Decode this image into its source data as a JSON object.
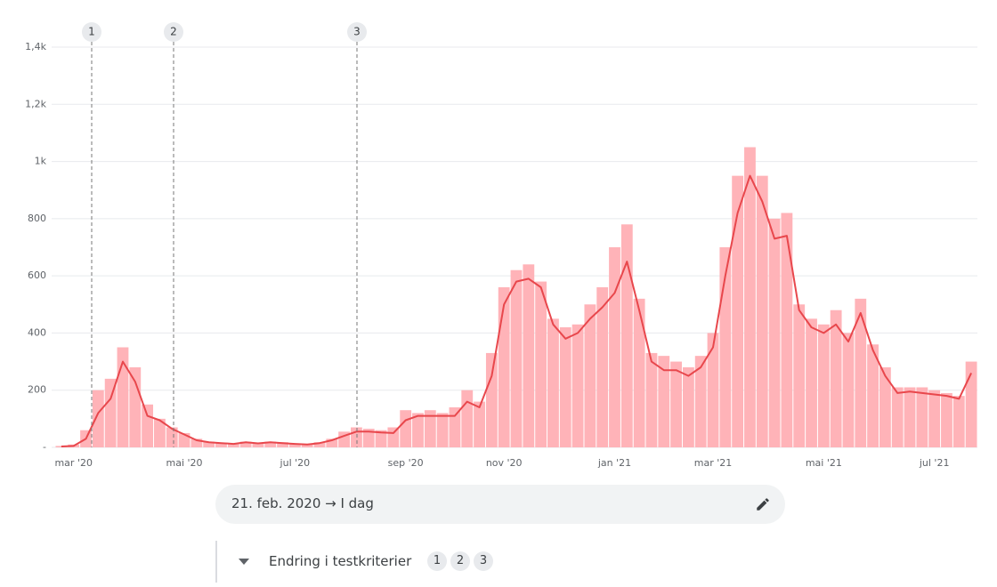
{
  "chart_data": {
    "type": "combo",
    "categories": [
      null,
      "mar '20",
      null,
      null,
      null,
      null,
      null,
      null,
      null,
      null,
      "mai '20",
      null,
      null,
      null,
      null,
      null,
      null,
      null,
      null,
      "jul '20",
      null,
      null,
      null,
      null,
      null,
      null,
      null,
      null,
      "sep '20",
      null,
      null,
      null,
      null,
      null,
      null,
      null,
      "nov '20",
      null,
      null,
      null,
      null,
      null,
      null,
      null,
      null,
      "jan '21",
      null,
      null,
      null,
      null,
      null,
      null,
      null,
      "mar '21",
      null,
      null,
      null,
      null,
      null,
      null,
      null,
      null,
      "mai '21",
      null,
      null,
      null,
      null,
      null,
      null,
      null,
      null,
      "jul '21",
      null,
      null,
      null
    ],
    "series": [
      {
        "kind": "bar",
        "color": "#ffb3b8",
        "values": [
          5,
          10,
          60,
          200,
          240,
          350,
          280,
          150,
          100,
          70,
          50,
          30,
          20,
          15,
          12,
          20,
          15,
          20,
          18,
          14,
          12,
          18,
          30,
          55,
          70,
          65,
          60,
          70,
          130,
          120,
          130,
          120,
          140,
          200,
          160,
          330,
          560,
          620,
          640,
          580,
          450,
          420,
          430,
          500,
          560,
          700,
          780,
          520,
          330,
          320,
          300,
          280,
          320,
          400,
          700,
          950,
          1050,
          950,
          800,
          820,
          500,
          450,
          430,
          480,
          400,
          520,
          360,
          280,
          210,
          210,
          210,
          200,
          190,
          180,
          300
        ]
      },
      {
        "kind": "line",
        "color": "#e8474c",
        "values": [
          3,
          5,
          30,
          120,
          170,
          300,
          230,
          110,
          95,
          65,
          45,
          25,
          18,
          15,
          12,
          18,
          14,
          18,
          15,
          12,
          10,
          15,
          25,
          40,
          55,
          55,
          52,
          50,
          95,
          110,
          110,
          110,
          110,
          160,
          140,
          250,
          500,
          580,
          590,
          560,
          430,
          380,
          400,
          450,
          490,
          540,
          650,
          480,
          300,
          270,
          270,
          250,
          280,
          350,
          600,
          820,
          950,
          860,
          730,
          740,
          480,
          420,
          400,
          430,
          370,
          470,
          340,
          250,
          190,
          195,
          190,
          185,
          180,
          170,
          260
        ]
      }
    ],
    "ylim": [
      0,
      1400
    ],
    "yticks": [
      {
        "value": 0,
        "label": "-"
      },
      200,
      400,
      600,
      800,
      {
        "value": 1000,
        "label": "1k"
      },
      {
        "value": 1200,
        "label": "1,2k"
      },
      {
        "value": 1400,
        "label": "1,4k"
      }
    ],
    "grid": true,
    "events": [
      "1",
      "2",
      "3"
    ]
  },
  "ui": {
    "date_range": "21. feb. 2020 → I dag",
    "section": "Endring i testkriterier"
  }
}
